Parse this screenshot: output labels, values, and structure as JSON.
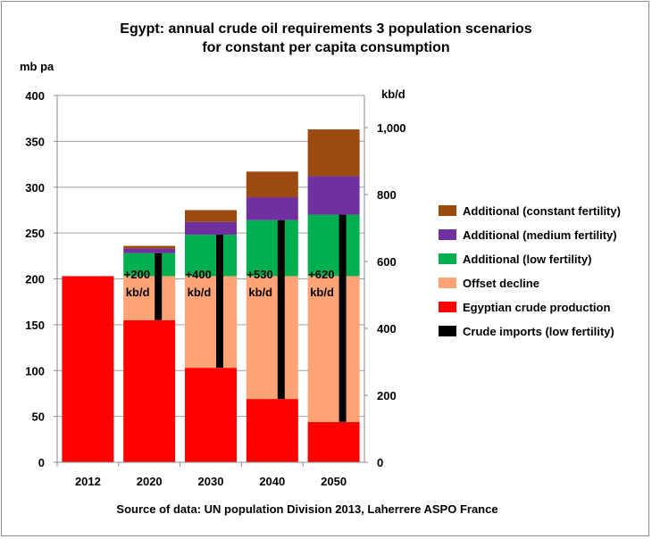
{
  "chart_data": {
    "type": "bar",
    "stacked": true,
    "title": "Egypt: annual crude oil requirements 3 population scenarios",
    "subtitle": "for constant per capita consumption",
    "ylabel_left": "mb pa",
    "ylabel_right": "kb/d",
    "ylim_left": [
      0,
      400
    ],
    "ylim_right": [
      0,
      1095.9
    ],
    "yticks_left": [
      "0",
      "50",
      "100",
      "150",
      "200",
      "250",
      "300",
      "350",
      "400"
    ],
    "yticks_right": [
      "0",
      "200",
      "400",
      "600",
      "800",
      "1,000"
    ],
    "categories": [
      "2012",
      "2020",
      "2030",
      "2040",
      "2050"
    ],
    "series": [
      {
        "name": "Egyptian crude production",
        "color": "#ff0000",
        "values": [
          203,
          155,
          103,
          69,
          44
        ]
      },
      {
        "name": "Offset decline",
        "color": "#ffa477",
        "values": [
          0,
          48,
          100,
          134,
          159
        ]
      },
      {
        "name": "Additional (low fertility)",
        "color": "#00b050",
        "values": [
          0,
          25,
          45,
          61,
          67
        ]
      },
      {
        "name": "Additional (medium fertility)",
        "color": "#7030a0",
        "values": [
          0,
          5,
          14,
          25,
          42
        ]
      },
      {
        "name": "Additional (constant fertility)",
        "color": "#9c4a10",
        "values": [
          0,
          3,
          13,
          28,
          51
        ]
      }
    ],
    "imports_line": {
      "name": "Crude imports (low fertility)",
      "color": "#000000",
      "ranges": [
        null,
        [
          155,
          228
        ],
        [
          103,
          248
        ],
        [
          69,
          264
        ],
        [
          44,
          270
        ]
      ]
    },
    "annotations": [
      {
        "category": "2020",
        "line1": "+200",
        "line2": "kb/d"
      },
      {
        "category": "2030",
        "line1": "+400",
        "line2": "kb/d"
      },
      {
        "category": "2040",
        "line1": "+530",
        "line2": "kb/d"
      },
      {
        "category": "2050",
        "line1": "+620",
        "line2": "kb/d"
      }
    ],
    "legend_order": [
      "Additional (constant fertility)",
      "Additional (medium fertility)",
      "Additional (low fertility)",
      "Offset decline",
      "Egyptian crude production",
      "Crude imports (low fertility)"
    ],
    "legend_position": "right",
    "source": "Source of data: UN population Division 2013, Laherrere ASPO France"
  }
}
